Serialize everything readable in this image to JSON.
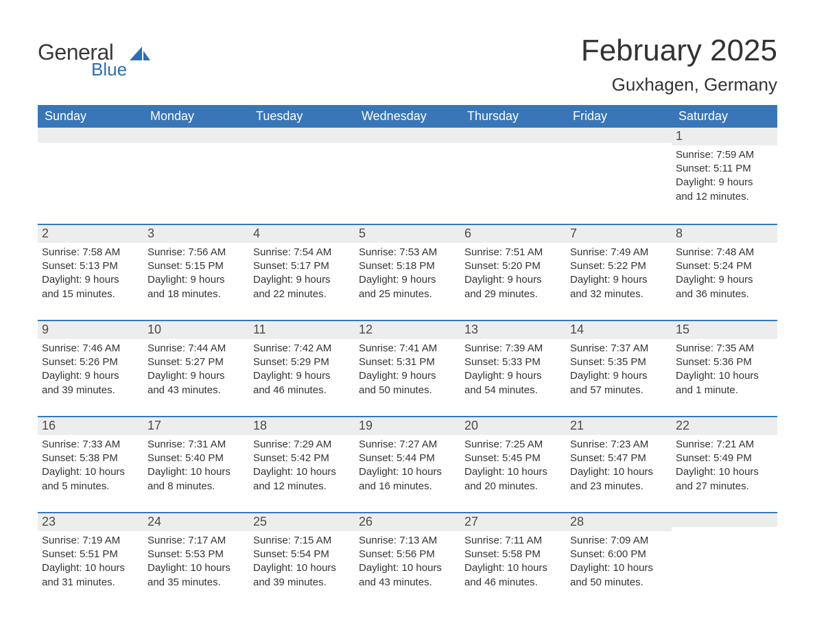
{
  "brand": {
    "word1": "General",
    "word2": "Blue",
    "word1_color": "#3a3a3a",
    "word2_color": "#2a6eb8",
    "icon_color": "#2a6eb8"
  },
  "title": "February 2025",
  "location": "Guxhagen, Germany",
  "colors": {
    "header_bg": "#3876b8",
    "header_text": "#ffffff",
    "daynum_bg": "#ededed",
    "daynum_border": "#3876b8",
    "body_text": "#333333",
    "page_bg": "#ffffff"
  },
  "weekdays": [
    "Sunday",
    "Monday",
    "Tuesday",
    "Wednesday",
    "Thursday",
    "Friday",
    "Saturday"
  ],
  "weeks": [
    [
      null,
      null,
      null,
      null,
      null,
      null,
      {
        "n": "1",
        "sunrise": "Sunrise: 7:59 AM",
        "sunset": "Sunset: 5:11 PM",
        "day1": "Daylight: 9 hours",
        "day2": "and 12 minutes."
      }
    ],
    [
      {
        "n": "2",
        "sunrise": "Sunrise: 7:58 AM",
        "sunset": "Sunset: 5:13 PM",
        "day1": "Daylight: 9 hours",
        "day2": "and 15 minutes."
      },
      {
        "n": "3",
        "sunrise": "Sunrise: 7:56 AM",
        "sunset": "Sunset: 5:15 PM",
        "day1": "Daylight: 9 hours",
        "day2": "and 18 minutes."
      },
      {
        "n": "4",
        "sunrise": "Sunrise: 7:54 AM",
        "sunset": "Sunset: 5:17 PM",
        "day1": "Daylight: 9 hours",
        "day2": "and 22 minutes."
      },
      {
        "n": "5",
        "sunrise": "Sunrise: 7:53 AM",
        "sunset": "Sunset: 5:18 PM",
        "day1": "Daylight: 9 hours",
        "day2": "and 25 minutes."
      },
      {
        "n": "6",
        "sunrise": "Sunrise: 7:51 AM",
        "sunset": "Sunset: 5:20 PM",
        "day1": "Daylight: 9 hours",
        "day2": "and 29 minutes."
      },
      {
        "n": "7",
        "sunrise": "Sunrise: 7:49 AM",
        "sunset": "Sunset: 5:22 PM",
        "day1": "Daylight: 9 hours",
        "day2": "and 32 minutes."
      },
      {
        "n": "8",
        "sunrise": "Sunrise: 7:48 AM",
        "sunset": "Sunset: 5:24 PM",
        "day1": "Daylight: 9 hours",
        "day2": "and 36 minutes."
      }
    ],
    [
      {
        "n": "9",
        "sunrise": "Sunrise: 7:46 AM",
        "sunset": "Sunset: 5:26 PM",
        "day1": "Daylight: 9 hours",
        "day2": "and 39 minutes."
      },
      {
        "n": "10",
        "sunrise": "Sunrise: 7:44 AM",
        "sunset": "Sunset: 5:27 PM",
        "day1": "Daylight: 9 hours",
        "day2": "and 43 minutes."
      },
      {
        "n": "11",
        "sunrise": "Sunrise: 7:42 AM",
        "sunset": "Sunset: 5:29 PM",
        "day1": "Daylight: 9 hours",
        "day2": "and 46 minutes."
      },
      {
        "n": "12",
        "sunrise": "Sunrise: 7:41 AM",
        "sunset": "Sunset: 5:31 PM",
        "day1": "Daylight: 9 hours",
        "day2": "and 50 minutes."
      },
      {
        "n": "13",
        "sunrise": "Sunrise: 7:39 AM",
        "sunset": "Sunset: 5:33 PM",
        "day1": "Daylight: 9 hours",
        "day2": "and 54 minutes."
      },
      {
        "n": "14",
        "sunrise": "Sunrise: 7:37 AM",
        "sunset": "Sunset: 5:35 PM",
        "day1": "Daylight: 9 hours",
        "day2": "and 57 minutes."
      },
      {
        "n": "15",
        "sunrise": "Sunrise: 7:35 AM",
        "sunset": "Sunset: 5:36 PM",
        "day1": "Daylight: 10 hours",
        "day2": "and 1 minute."
      }
    ],
    [
      {
        "n": "16",
        "sunrise": "Sunrise: 7:33 AM",
        "sunset": "Sunset: 5:38 PM",
        "day1": "Daylight: 10 hours",
        "day2": "and 5 minutes."
      },
      {
        "n": "17",
        "sunrise": "Sunrise: 7:31 AM",
        "sunset": "Sunset: 5:40 PM",
        "day1": "Daylight: 10 hours",
        "day2": "and 8 minutes."
      },
      {
        "n": "18",
        "sunrise": "Sunrise: 7:29 AM",
        "sunset": "Sunset: 5:42 PM",
        "day1": "Daylight: 10 hours",
        "day2": "and 12 minutes."
      },
      {
        "n": "19",
        "sunrise": "Sunrise: 7:27 AM",
        "sunset": "Sunset: 5:44 PM",
        "day1": "Daylight: 10 hours",
        "day2": "and 16 minutes."
      },
      {
        "n": "20",
        "sunrise": "Sunrise: 7:25 AM",
        "sunset": "Sunset: 5:45 PM",
        "day1": "Daylight: 10 hours",
        "day2": "and 20 minutes."
      },
      {
        "n": "21",
        "sunrise": "Sunrise: 7:23 AM",
        "sunset": "Sunset: 5:47 PM",
        "day1": "Daylight: 10 hours",
        "day2": "and 23 minutes."
      },
      {
        "n": "22",
        "sunrise": "Sunrise: 7:21 AM",
        "sunset": "Sunset: 5:49 PM",
        "day1": "Daylight: 10 hours",
        "day2": "and 27 minutes."
      }
    ],
    [
      {
        "n": "23",
        "sunrise": "Sunrise: 7:19 AM",
        "sunset": "Sunset: 5:51 PM",
        "day1": "Daylight: 10 hours",
        "day2": "and 31 minutes."
      },
      {
        "n": "24",
        "sunrise": "Sunrise: 7:17 AM",
        "sunset": "Sunset: 5:53 PM",
        "day1": "Daylight: 10 hours",
        "day2": "and 35 minutes."
      },
      {
        "n": "25",
        "sunrise": "Sunrise: 7:15 AM",
        "sunset": "Sunset: 5:54 PM",
        "day1": "Daylight: 10 hours",
        "day2": "and 39 minutes."
      },
      {
        "n": "26",
        "sunrise": "Sunrise: 7:13 AM",
        "sunset": "Sunset: 5:56 PM",
        "day1": "Daylight: 10 hours",
        "day2": "and 43 minutes."
      },
      {
        "n": "27",
        "sunrise": "Sunrise: 7:11 AM",
        "sunset": "Sunset: 5:58 PM",
        "day1": "Daylight: 10 hours",
        "day2": "and 46 minutes."
      },
      {
        "n": "28",
        "sunrise": "Sunrise: 7:09 AM",
        "sunset": "Sunset: 6:00 PM",
        "day1": "Daylight: 10 hours",
        "day2": "and 50 minutes."
      },
      null
    ]
  ]
}
